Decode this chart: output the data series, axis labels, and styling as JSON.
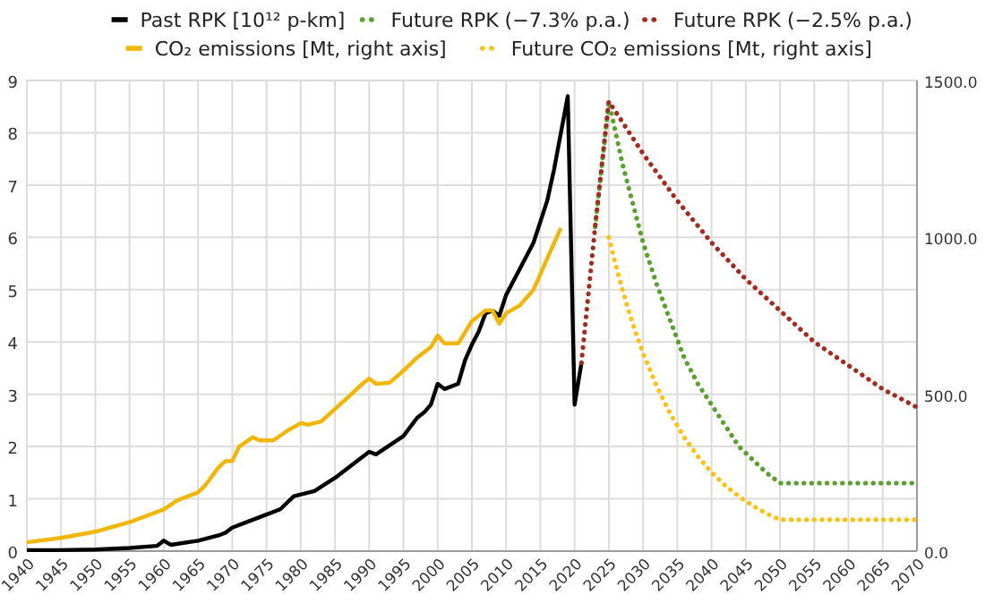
{
  "chart_data": {
    "type": "line",
    "x": [
      1940,
      1945,
      1950,
      1955,
      1959,
      1960,
      1961,
      1965,
      1968,
      1969,
      1970,
      1972,
      1975,
      1977,
      1979,
      1982,
      1985,
      1987,
      1990,
      1991,
      1995,
      1997,
      1998,
      1999,
      2000,
      2001,
      2003,
      2004,
      2005,
      2006,
      2007,
      2008,
      2009,
      2010,
      2012,
      2014,
      2016,
      2017,
      2018,
      2019,
      2020,
      2021
    ],
    "series": [
      {
        "name": "Past RPK [10¹² p-km]",
        "color": "#000000",
        "line_style": "solid",
        "values": [
          0.02,
          0.02,
          0.03,
          0.06,
          0.1,
          0.2,
          0.12,
          0.2,
          0.3,
          0.35,
          0.45,
          0.55,
          0.7,
          0.8,
          1.05,
          1.15,
          1.4,
          1.6,
          1.9,
          1.85,
          2.2,
          2.55,
          2.65,
          2.8,
          3.2,
          3.1,
          3.2,
          3.65,
          3.95,
          4.2,
          4.55,
          4.6,
          4.5,
          4.9,
          5.4,
          5.9,
          6.7,
          7.3,
          8.0,
          8.7,
          2.8,
          3.6
        ]
      },
      {
        "name": "Future RPK (−7.3% p.a.)",
        "color": "#5aa02c",
        "line_style": "dotted",
        "x": [
          2023,
          2024,
          2025,
          2026,
          2027,
          2028,
          2029,
          2030,
          2032,
          2034,
          2036,
          2038,
          2040,
          2042,
          2044,
          2046,
          2048,
          2050,
          2070
        ],
        "values": [
          6.2,
          7.4,
          8.6,
          8.0,
          7.4,
          6.9,
          6.4,
          5.9,
          5.1,
          4.4,
          3.7,
          3.2,
          2.8,
          2.4,
          2.0,
          1.75,
          1.5,
          1.3,
          1.3
        ]
      },
      {
        "name": "Future RPK (−2.5% p.a.)",
        "color": "#a52a1e",
        "line_style": "dotted",
        "x": [
          2021,
          2022,
          2023,
          2024,
          2025,
          2030,
          2035,
          2040,
          2045,
          2050,
          2055,
          2060,
          2065,
          2070
        ],
        "values": [
          3.6,
          4.9,
          6.2,
          7.4,
          8.6,
          7.6,
          6.7,
          5.9,
          5.2,
          4.6,
          4.0,
          3.55,
          3.1,
          2.75
        ]
      },
      {
        "name": "CO₂ emissions [Mt, right axis]",
        "color": "#f2b600",
        "line_style": "solid",
        "axis": "y2",
        "x": [
          1940,
          1945,
          1950,
          1955,
          1960,
          1962,
          1965,
          1966,
          1968,
          1969,
          1970,
          1971,
          1973,
          1974,
          1976,
          1978,
          1980,
          1981,
          1983,
          1985,
          1987,
          1989,
          1990,
          1991,
          1993,
          1995,
          1997,
          1999,
          2000,
          2001,
          2003,
          2005,
          2007,
          2008,
          2009,
          2010,
          2012,
          2014,
          2016,
          2018
        ],
        "values": [
          28,
          42,
          62,
          92,
          133,
          162,
          187,
          208,
          267,
          287,
          287,
          333,
          363,
          353,
          353,
          383,
          408,
          403,
          413,
          453,
          492,
          533,
          550,
          533,
          537,
          575,
          617,
          650,
          687,
          662,
          662,
          733,
          767,
          767,
          725,
          758,
          783,
          833,
          933,
          1030
        ]
      },
      {
        "name": "Future CO₂ emissions [Mt, right axis]",
        "color": "#ffc20e",
        "line_style": "dotted",
        "axis": "y2",
        "x": [
          2025,
          2026,
          2027,
          2028,
          2029,
          2030,
          2032,
          2034,
          2036,
          2038,
          2040,
          2042,
          2044,
          2046,
          2048,
          2050,
          2070
        ],
        "values": [
          1000,
          912,
          832,
          759,
          692,
          631,
          525,
          437,
          363,
          302,
          251,
          209,
          174,
          145,
          120,
          100,
          100
        ]
      }
    ],
    "xlim": [
      1940,
      2070
    ],
    "xticks": [
      1940,
      1945,
      1950,
      1955,
      1960,
      1965,
      1970,
      1975,
      1980,
      1985,
      1990,
      1995,
      2000,
      2005,
      2010,
      2015,
      2020,
      2025,
      2030,
      2035,
      2040,
      2045,
      2050,
      2055,
      2060,
      2065,
      2070
    ],
    "ylim": [
      0,
      9
    ],
    "yticks": [
      0,
      1,
      2,
      3,
      4,
      5,
      6,
      7,
      8,
      9
    ],
    "y2lim": [
      0,
      1500
    ],
    "y2ticks": [
      {
        "value": 0,
        "label": "0.0"
      },
      {
        "value": 500,
        "label": "500.0"
      },
      {
        "value": 1000,
        "label": "1000.0"
      },
      {
        "value": 1500,
        "label": "1500.0"
      }
    ],
    "grid": true,
    "legend": "top",
    "marker": "none"
  }
}
